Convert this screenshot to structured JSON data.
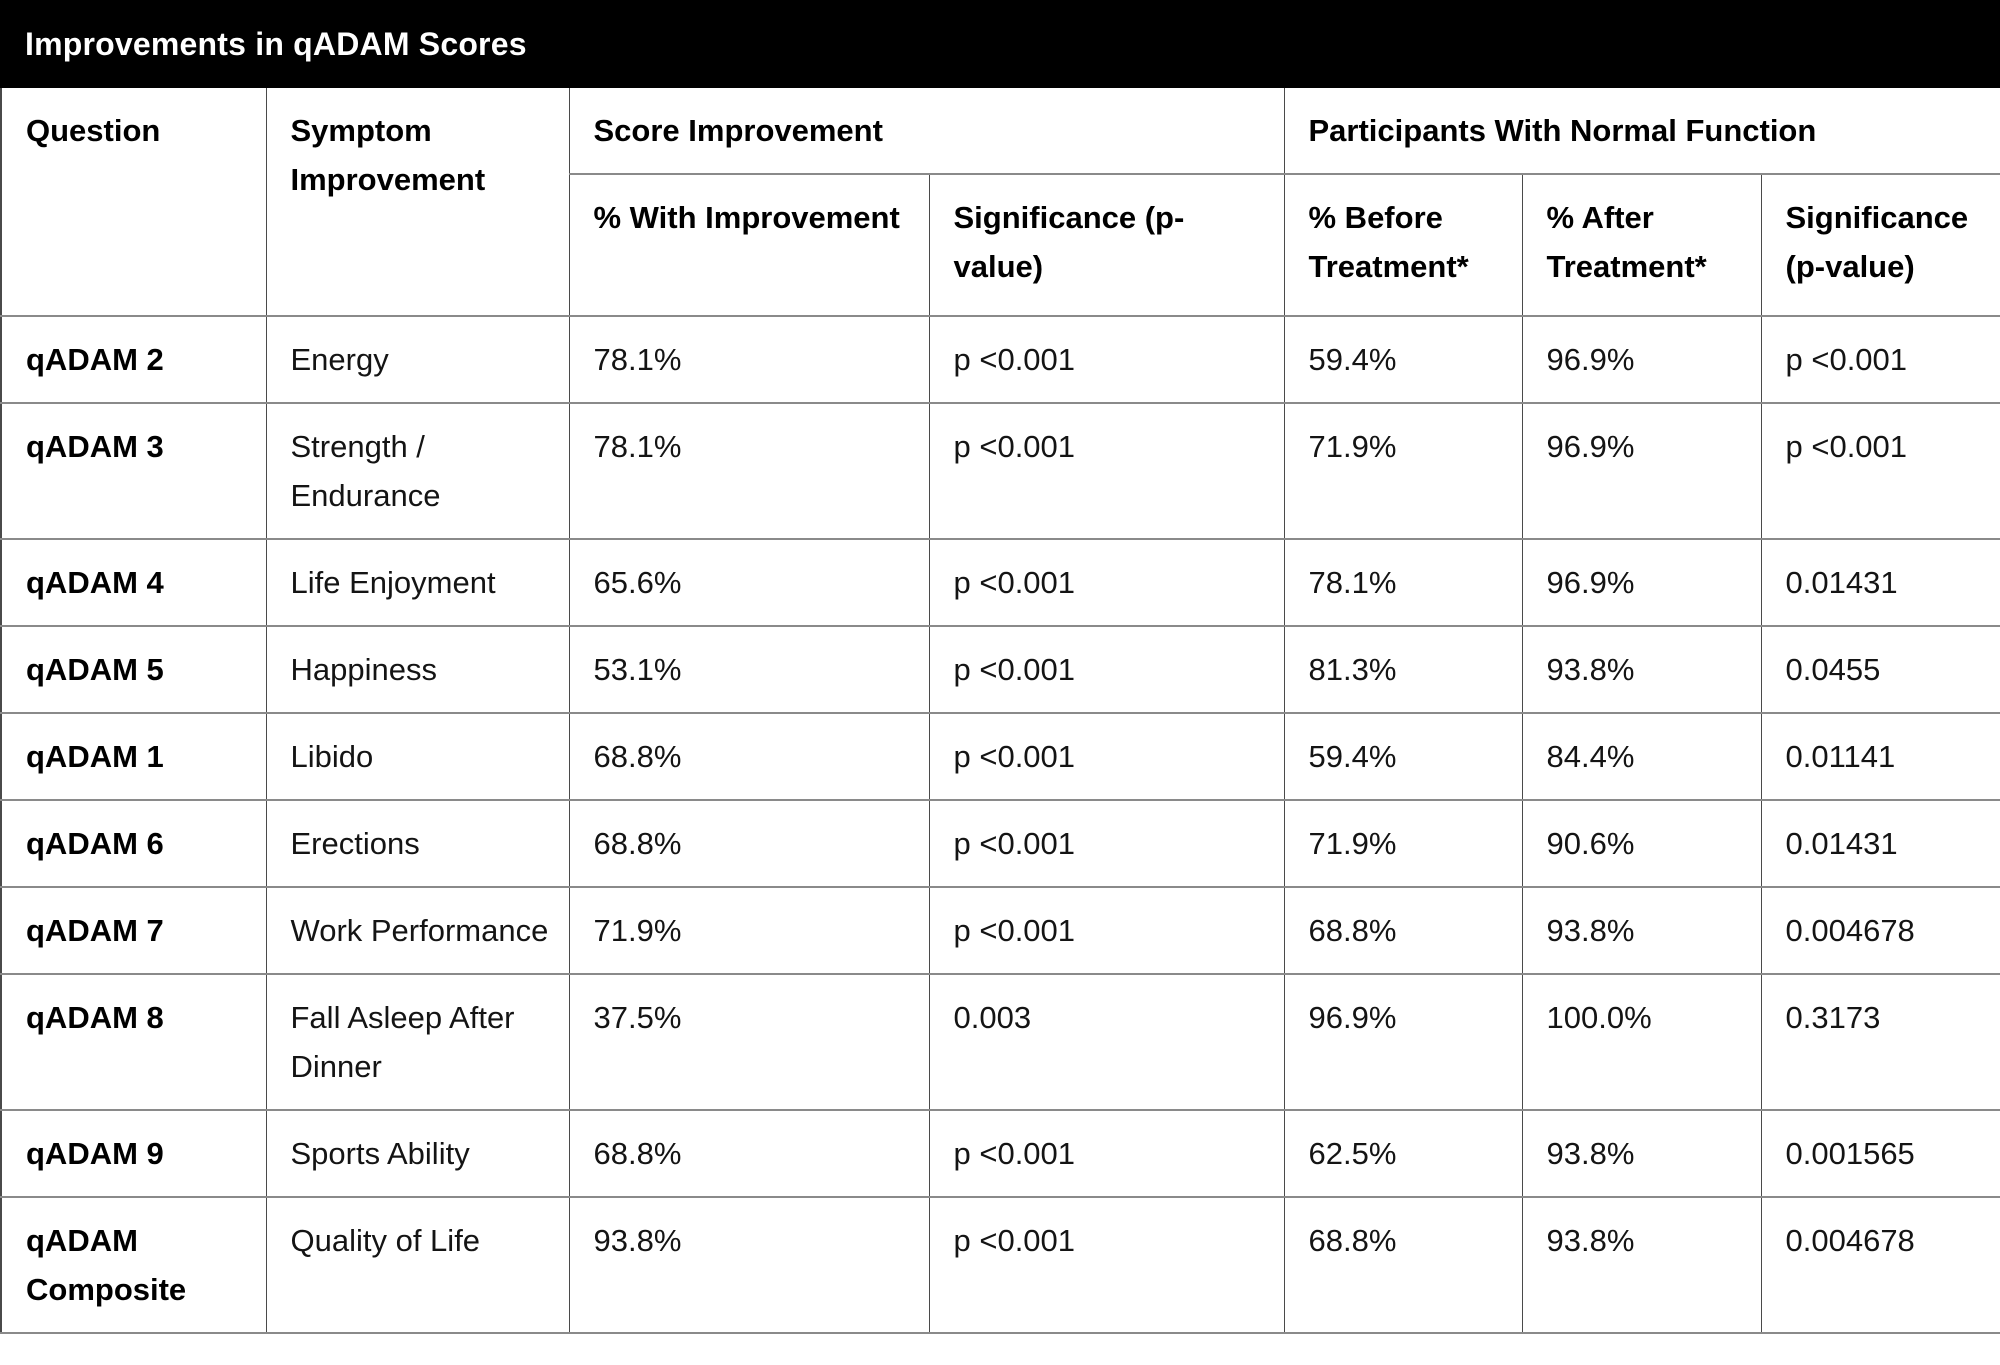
{
  "title_bar": {
    "title": "Improvements in qADAM Scores"
  },
  "table": {
    "group_headers": {
      "question": "Question",
      "symptom": "Symptom Improvement",
      "score": "Score Improvement",
      "participants": "Participants With Normal Function"
    },
    "sub_headers": {
      "pct_with_improvement": "% With Improvement",
      "score_significance": "Significance (p-value)",
      "pct_before": "% Before Treatment*",
      "pct_after": "% After Treatment*",
      "participants_significance": "Significance (p-value)"
    },
    "rows": [
      {
        "question": "qADAM 2",
        "symptom": "Energy",
        "pct_with_improvement": "78.1%",
        "score_significance": "p <0.001",
        "pct_before": "59.4%",
        "pct_after": "96.9%",
        "participants_significance": "p <0.001"
      },
      {
        "question": "qADAM 3",
        "symptom": "Strength / Endurance",
        "pct_with_improvement": "78.1%",
        "score_significance": "p <0.001",
        "pct_before": "71.9%",
        "pct_after": "96.9%",
        "participants_significance": "p <0.001"
      },
      {
        "question": "qADAM 4",
        "symptom": "Life Enjoyment",
        "pct_with_improvement": "65.6%",
        "score_significance": "p <0.001",
        "pct_before": "78.1%",
        "pct_after": "96.9%",
        "participants_significance": "0.01431"
      },
      {
        "question": "qADAM 5",
        "symptom": "Happiness",
        "pct_with_improvement": "53.1%",
        "score_significance": "p <0.001",
        "pct_before": "81.3%",
        "pct_after": "93.8%",
        "participants_significance": "0.0455"
      },
      {
        "question": "qADAM 1",
        "symptom": "Libido",
        "pct_with_improvement": "68.8%",
        "score_significance": "p <0.001",
        "pct_before": "59.4%",
        "pct_after": "84.4%",
        "participants_significance": "0.01141"
      },
      {
        "question": "qADAM 6",
        "symptom": "Erections",
        "pct_with_improvement": "68.8%",
        "score_significance": "p <0.001",
        "pct_before": "71.9%",
        "pct_after": "90.6%",
        "participants_significance": "0.01431"
      },
      {
        "question": "qADAM 7",
        "symptom": "Work Performance",
        "pct_with_improvement": "71.9%",
        "score_significance": "p <0.001",
        "pct_before": "68.8%",
        "pct_after": "93.8%",
        "participants_significance": "0.004678"
      },
      {
        "question": "qADAM 8",
        "symptom": "Fall Asleep After Dinner",
        "pct_with_improvement": "37.5%",
        "score_significance": "0.003",
        "pct_before": "96.9%",
        "pct_after": "100.0%",
        "participants_significance": "0.3173"
      },
      {
        "question": "qADAM 9",
        "symptom": "Sports Ability",
        "pct_with_improvement": "68.8%",
        "score_significance": "p <0.001",
        "pct_before": "62.5%",
        "pct_after": "93.8%",
        "participants_significance": "0.001565"
      },
      {
        "question": "qADAM Composite",
        "symptom": "Quality of Life",
        "pct_with_improvement": "93.8%",
        "score_significance": "p <0.001",
        "pct_before": "68.8%",
        "pct_after": "93.8%",
        "participants_significance": "0.004678"
      }
    ]
  },
  "colors": {
    "title_bar_bg": "#000000",
    "title_text": "#ffffff",
    "vertical_border": "#4a4a4a",
    "horizontal_border": "#8a8a8a",
    "cell_bg": "#ffffff"
  }
}
